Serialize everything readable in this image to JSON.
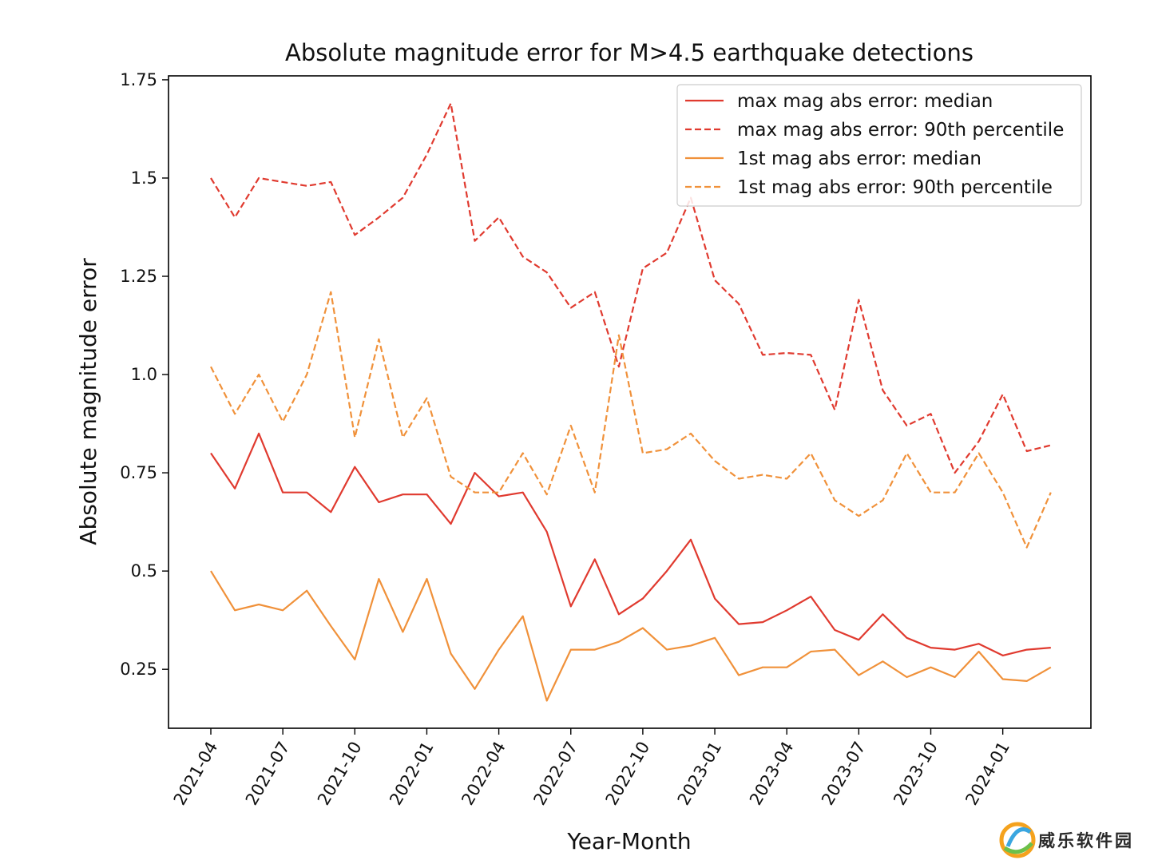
{
  "chart_data": {
    "type": "line",
    "title": "Absolute magnitude error for M>4.5 earthquake detections",
    "xlabel": "Year-Month",
    "ylabel": "Absolute magnitude error",
    "x": [
      "2021-04",
      "2021-05",
      "2021-06",
      "2021-07",
      "2021-08",
      "2021-09",
      "2021-10",
      "2021-11",
      "2021-12",
      "2022-01",
      "2022-02",
      "2022-03",
      "2022-04",
      "2022-05",
      "2022-06",
      "2022-07",
      "2022-08",
      "2022-09",
      "2022-10",
      "2022-11",
      "2022-12",
      "2023-01",
      "2023-02",
      "2023-03",
      "2023-04",
      "2023-05",
      "2023-06",
      "2023-07",
      "2023-08",
      "2023-09",
      "2023-10",
      "2023-11",
      "2023-12",
      "2024-01",
      "2024-02",
      "2024-03"
    ],
    "x_ticks": [
      "2021-04",
      "2021-07",
      "2021-10",
      "2022-01",
      "2022-04",
      "2022-07",
      "2022-10",
      "2023-01",
      "2023-04",
      "2023-07",
      "2023-10",
      "2024-01"
    ],
    "y_ticks": [
      "0.25",
      "0.5",
      "0.75",
      "1.0",
      "1.25",
      "1.5",
      "1.75"
    ],
    "ylim": [
      0.1,
      1.76
    ],
    "grid": false,
    "legend_position": "top-right",
    "series": [
      {
        "name": "max mag abs error: median",
        "color": "#e03a2f",
        "style": "solid",
        "values": [
          0.8,
          0.71,
          0.85,
          0.7,
          0.7,
          0.65,
          0.765,
          0.675,
          0.695,
          0.695,
          0.62,
          0.75,
          0.69,
          0.7,
          0.6,
          0.41,
          0.53,
          0.39,
          0.43,
          0.5,
          0.58,
          0.43,
          0.365,
          0.37,
          0.4,
          0.435,
          0.35,
          0.325,
          0.39,
          0.33,
          0.305,
          0.3,
          0.315,
          0.285,
          0.3,
          0.305
        ]
      },
      {
        "name": "max mag abs error: 90th percentile",
        "color": "#e03a2f",
        "style": "dashed",
        "values": [
          1.5,
          1.4,
          1.5,
          1.49,
          1.48,
          1.49,
          1.355,
          1.4,
          1.45,
          1.56,
          1.69,
          1.34,
          1.4,
          1.3,
          1.26,
          1.17,
          1.21,
          1.02,
          1.27,
          1.31,
          1.45,
          1.24,
          1.18,
          1.05,
          1.055,
          1.05,
          0.91,
          1.19,
          0.96,
          0.87,
          0.9,
          0.75,
          0.83,
          0.95,
          0.805,
          0.82
        ]
      },
      {
        "name": "1st mag abs error: median",
        "color": "#f0913a",
        "style": "solid",
        "values": [
          0.5,
          0.4,
          0.415,
          0.4,
          0.45,
          0.36,
          0.275,
          0.48,
          0.345,
          0.48,
          0.29,
          0.2,
          0.3,
          0.385,
          0.17,
          0.3,
          0.3,
          0.32,
          0.355,
          0.3,
          0.31,
          0.33,
          0.235,
          0.255,
          0.255,
          0.295,
          0.3,
          0.235,
          0.27,
          0.23,
          0.255,
          0.23,
          0.295,
          0.225,
          0.22,
          0.255
        ]
      },
      {
        "name": "1st mag abs error: 90th percentile",
        "color": "#f0913a",
        "style": "dashed",
        "values": [
          1.02,
          0.9,
          1.0,
          0.88,
          1.0,
          1.21,
          0.84,
          1.09,
          0.84,
          0.94,
          0.74,
          0.7,
          0.7,
          0.8,
          0.695,
          0.87,
          0.7,
          1.1,
          0.8,
          0.81,
          0.85,
          0.78,
          0.735,
          0.745,
          0.735,
          0.8,
          0.68,
          0.64,
          0.68,
          0.8,
          0.7,
          0.7,
          0.8,
          0.7,
          0.56,
          0.7
        ]
      }
    ]
  },
  "watermark": {
    "text": "威乐软件园",
    "colors": [
      "#f4a21e",
      "#3aa6e0",
      "#6cc04a"
    ]
  }
}
